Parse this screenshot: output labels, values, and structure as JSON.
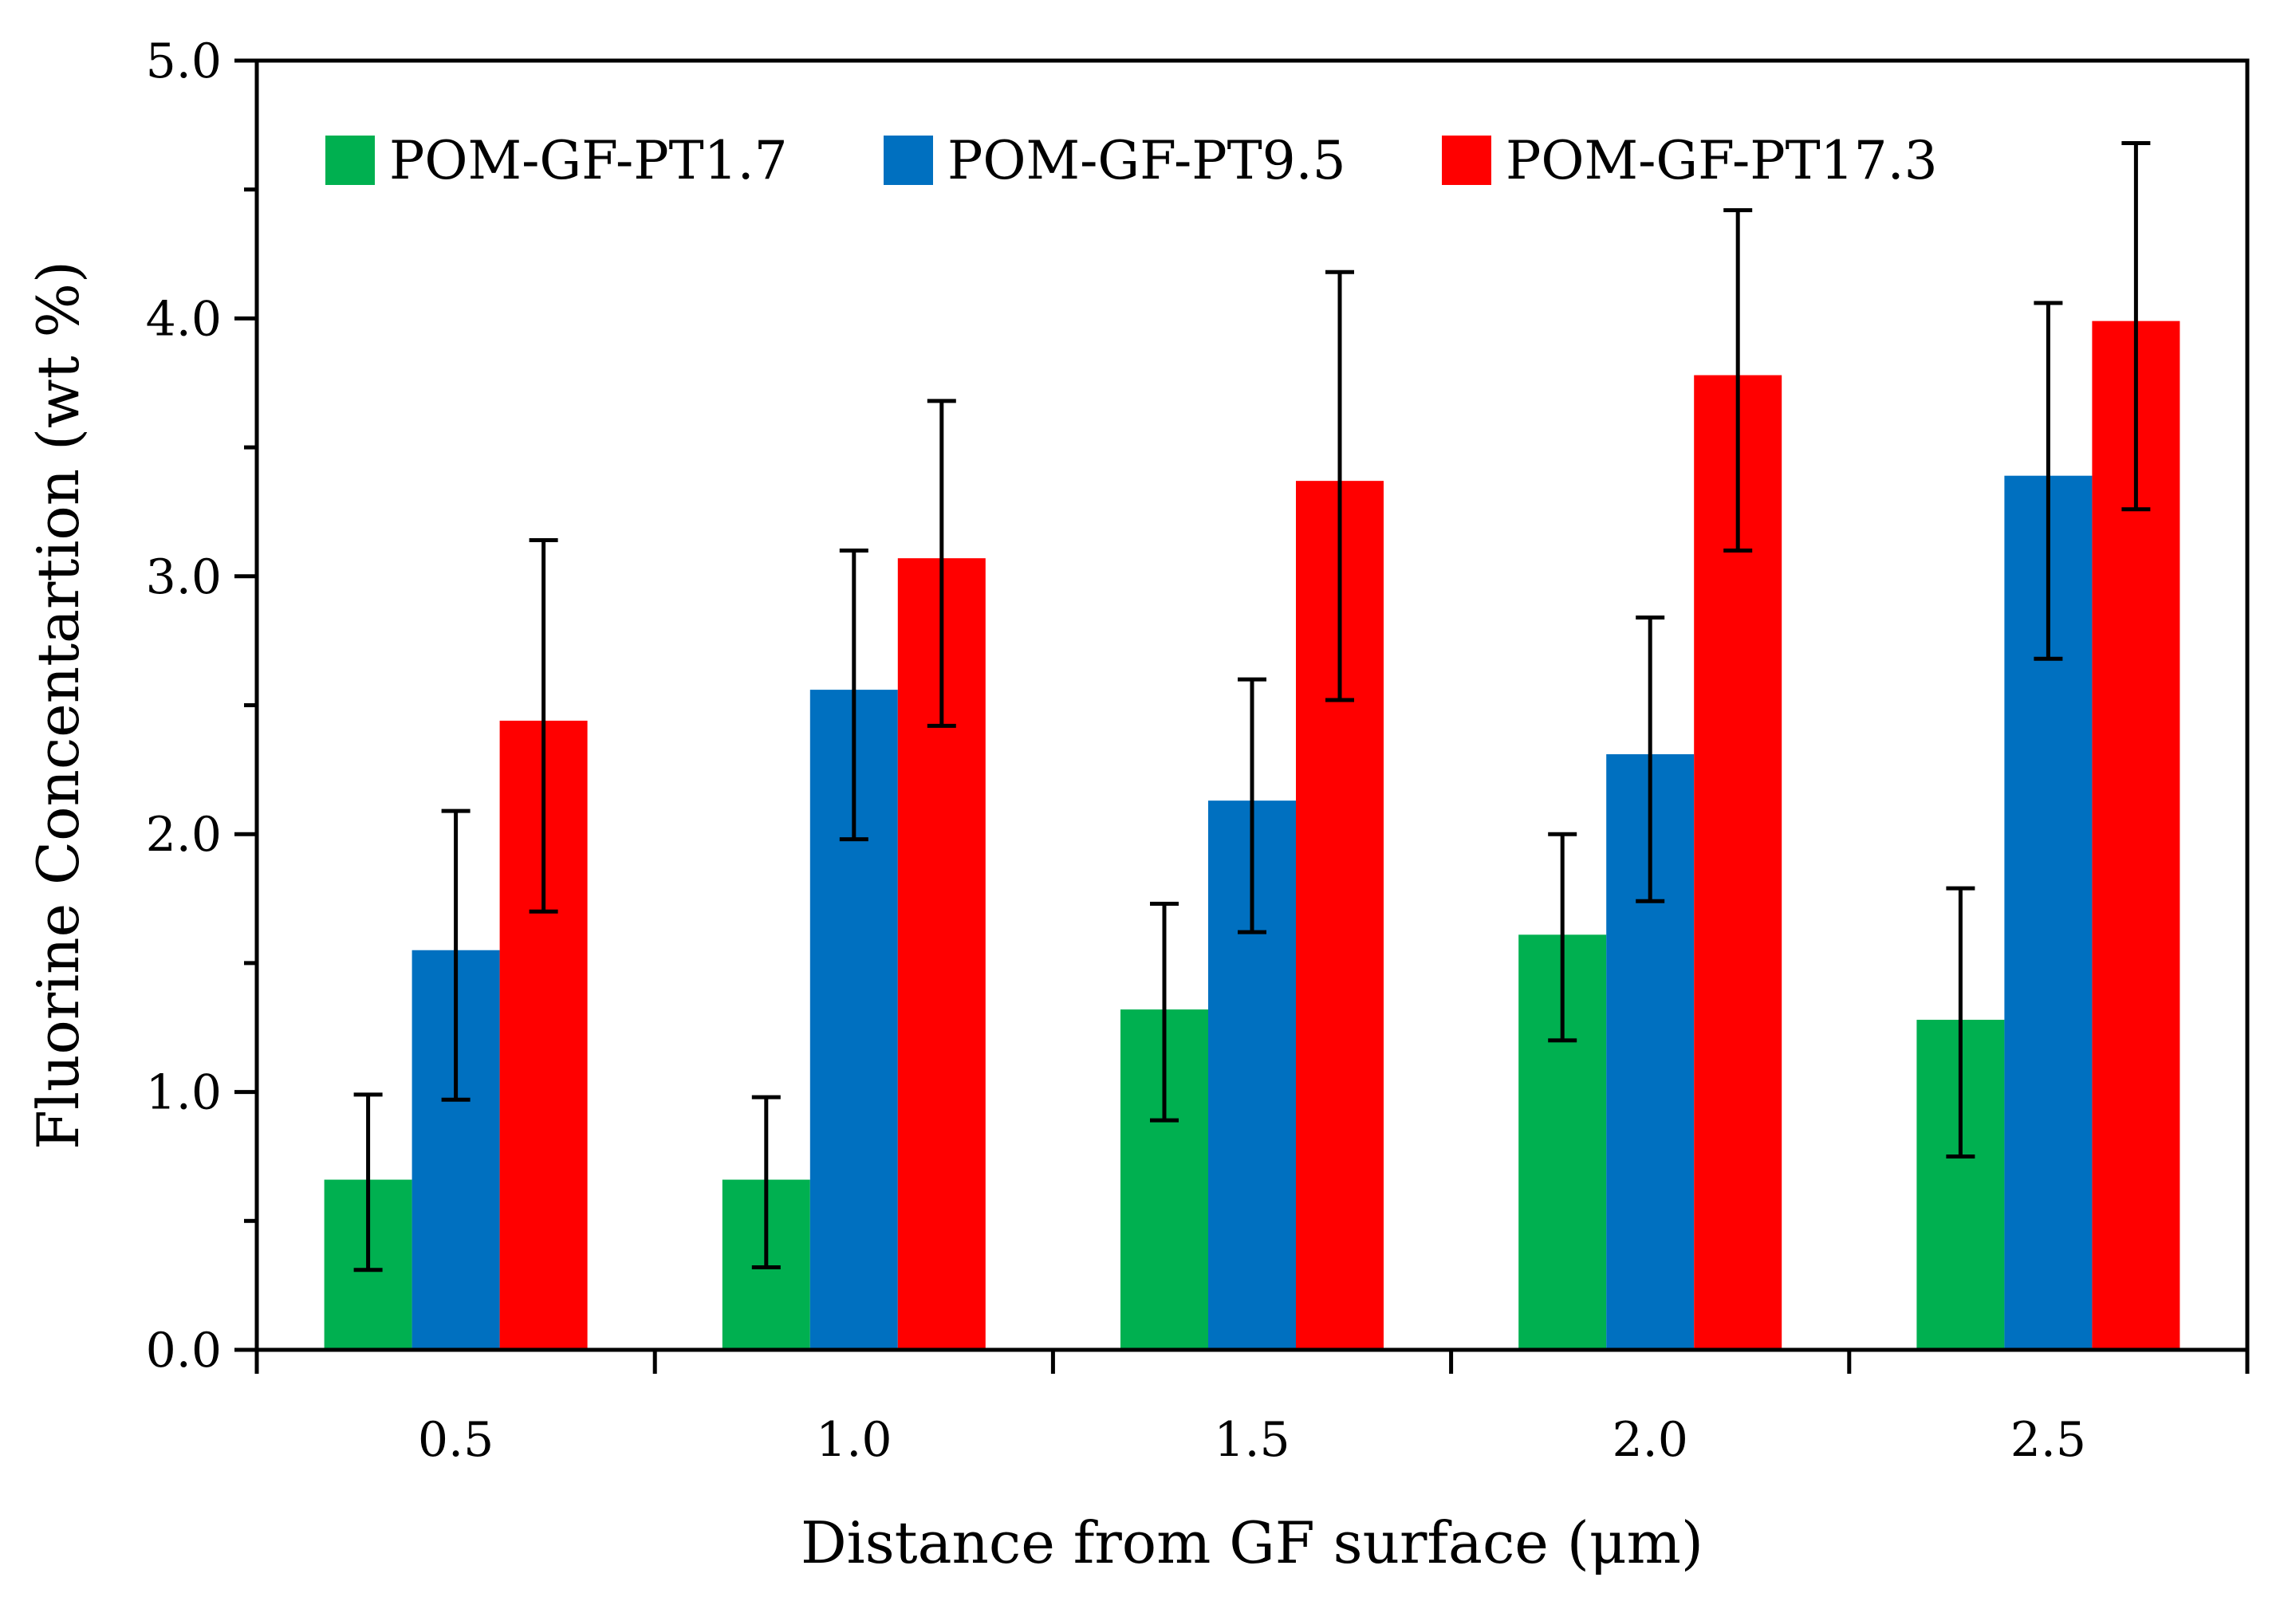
{
  "chart_data": {
    "type": "bar",
    "title": "",
    "xlabel": "Distance from GF surface (μm)",
    "ylabel": "Fluorine Concentartion (wt %)",
    "categories": [
      "0.5",
      "1.0",
      "1.5",
      "2.0",
      "2.5"
    ],
    "ylim": [
      0,
      5
    ],
    "yticks": [
      "0.0",
      "1.0",
      "2.0",
      "3.0",
      "4.0",
      "5.0"
    ],
    "ytick_values": [
      0,
      1,
      2,
      3,
      4,
      5
    ],
    "grid": false,
    "legend_position": "top",
    "series": [
      {
        "name": "POM-GF-PT1.7",
        "color": "#00b050",
        "values": [
          0.66,
          0.66,
          1.32,
          1.61,
          1.28
        ],
        "err_low": [
          0.31,
          0.32,
          0.89,
          1.2,
          0.75
        ],
        "err_high": [
          0.99,
          0.98,
          1.73,
          2.0,
          1.79
        ]
      },
      {
        "name": "POM-GF-PT9.5",
        "color": "#0070c0",
        "values": [
          1.55,
          2.56,
          2.13,
          2.31,
          3.39
        ],
        "err_low": [
          0.97,
          1.98,
          1.62,
          1.74,
          2.68
        ],
        "err_high": [
          2.09,
          3.1,
          2.6,
          2.84,
          4.06
        ]
      },
      {
        "name": "POM-GF-PT17.3",
        "color": "#ff0000",
        "values": [
          2.44,
          3.07,
          3.37,
          3.78,
          3.99
        ],
        "err_low": [
          1.7,
          2.42,
          2.52,
          3.1,
          3.26
        ],
        "err_high": [
          3.14,
          3.68,
          4.18,
          4.42,
          4.68
        ]
      }
    ]
  }
}
